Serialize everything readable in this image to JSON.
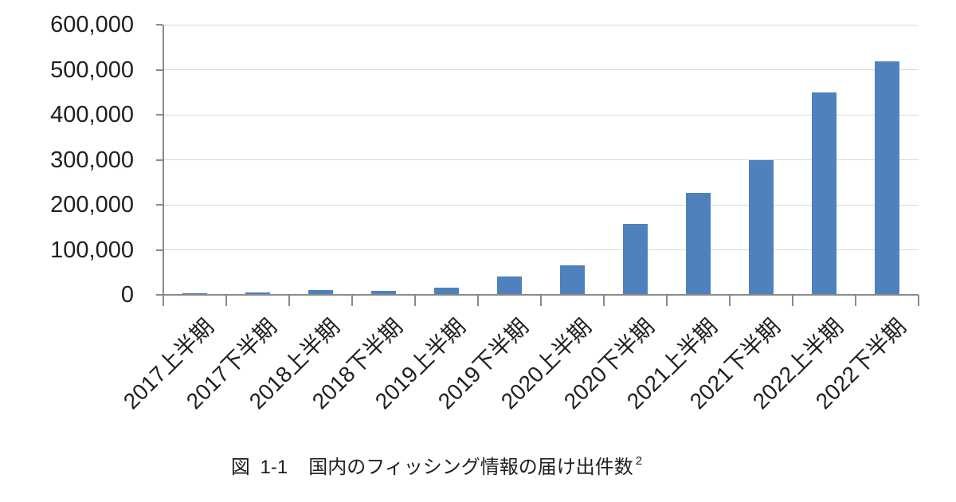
{
  "figure": {
    "caption": {
      "figure_label": "図 1-1",
      "title": "国内のフィッシング情報の届け出件数",
      "footnote_marker": "2"
    }
  },
  "chart_data": {
    "type": "bar",
    "title": "",
    "categories": [
      "2017上半期",
      "2017下半期",
      "2018上半期",
      "2018下半期",
      "2019上半期",
      "2019下半期",
      "2020上半期",
      "2020下半期",
      "2021上半期",
      "2021下半期",
      "2022上半期",
      "2022下半期"
    ],
    "values": [
      4000,
      6000,
      10000,
      9700,
      16000,
      40000,
      66000,
      158000,
      227000,
      299000,
      450000,
      519000
    ],
    "xlabel": "",
    "ylabel": "",
    "ylim": [
      0,
      600000
    ],
    "ytick_interval": 100000,
    "ytick_labels": [
      "0",
      "100,000",
      "200,000",
      "300,000",
      "400,000",
      "500,000",
      "600,000"
    ],
    "grid": "horizontal",
    "legend": "none",
    "x_tick_rotation_deg": -45,
    "bar_color": "#4e81bd",
    "gridline_color": "#d9d9d9",
    "axis_color": "#8a8a8a",
    "text_color": "#1f1f1f"
  }
}
